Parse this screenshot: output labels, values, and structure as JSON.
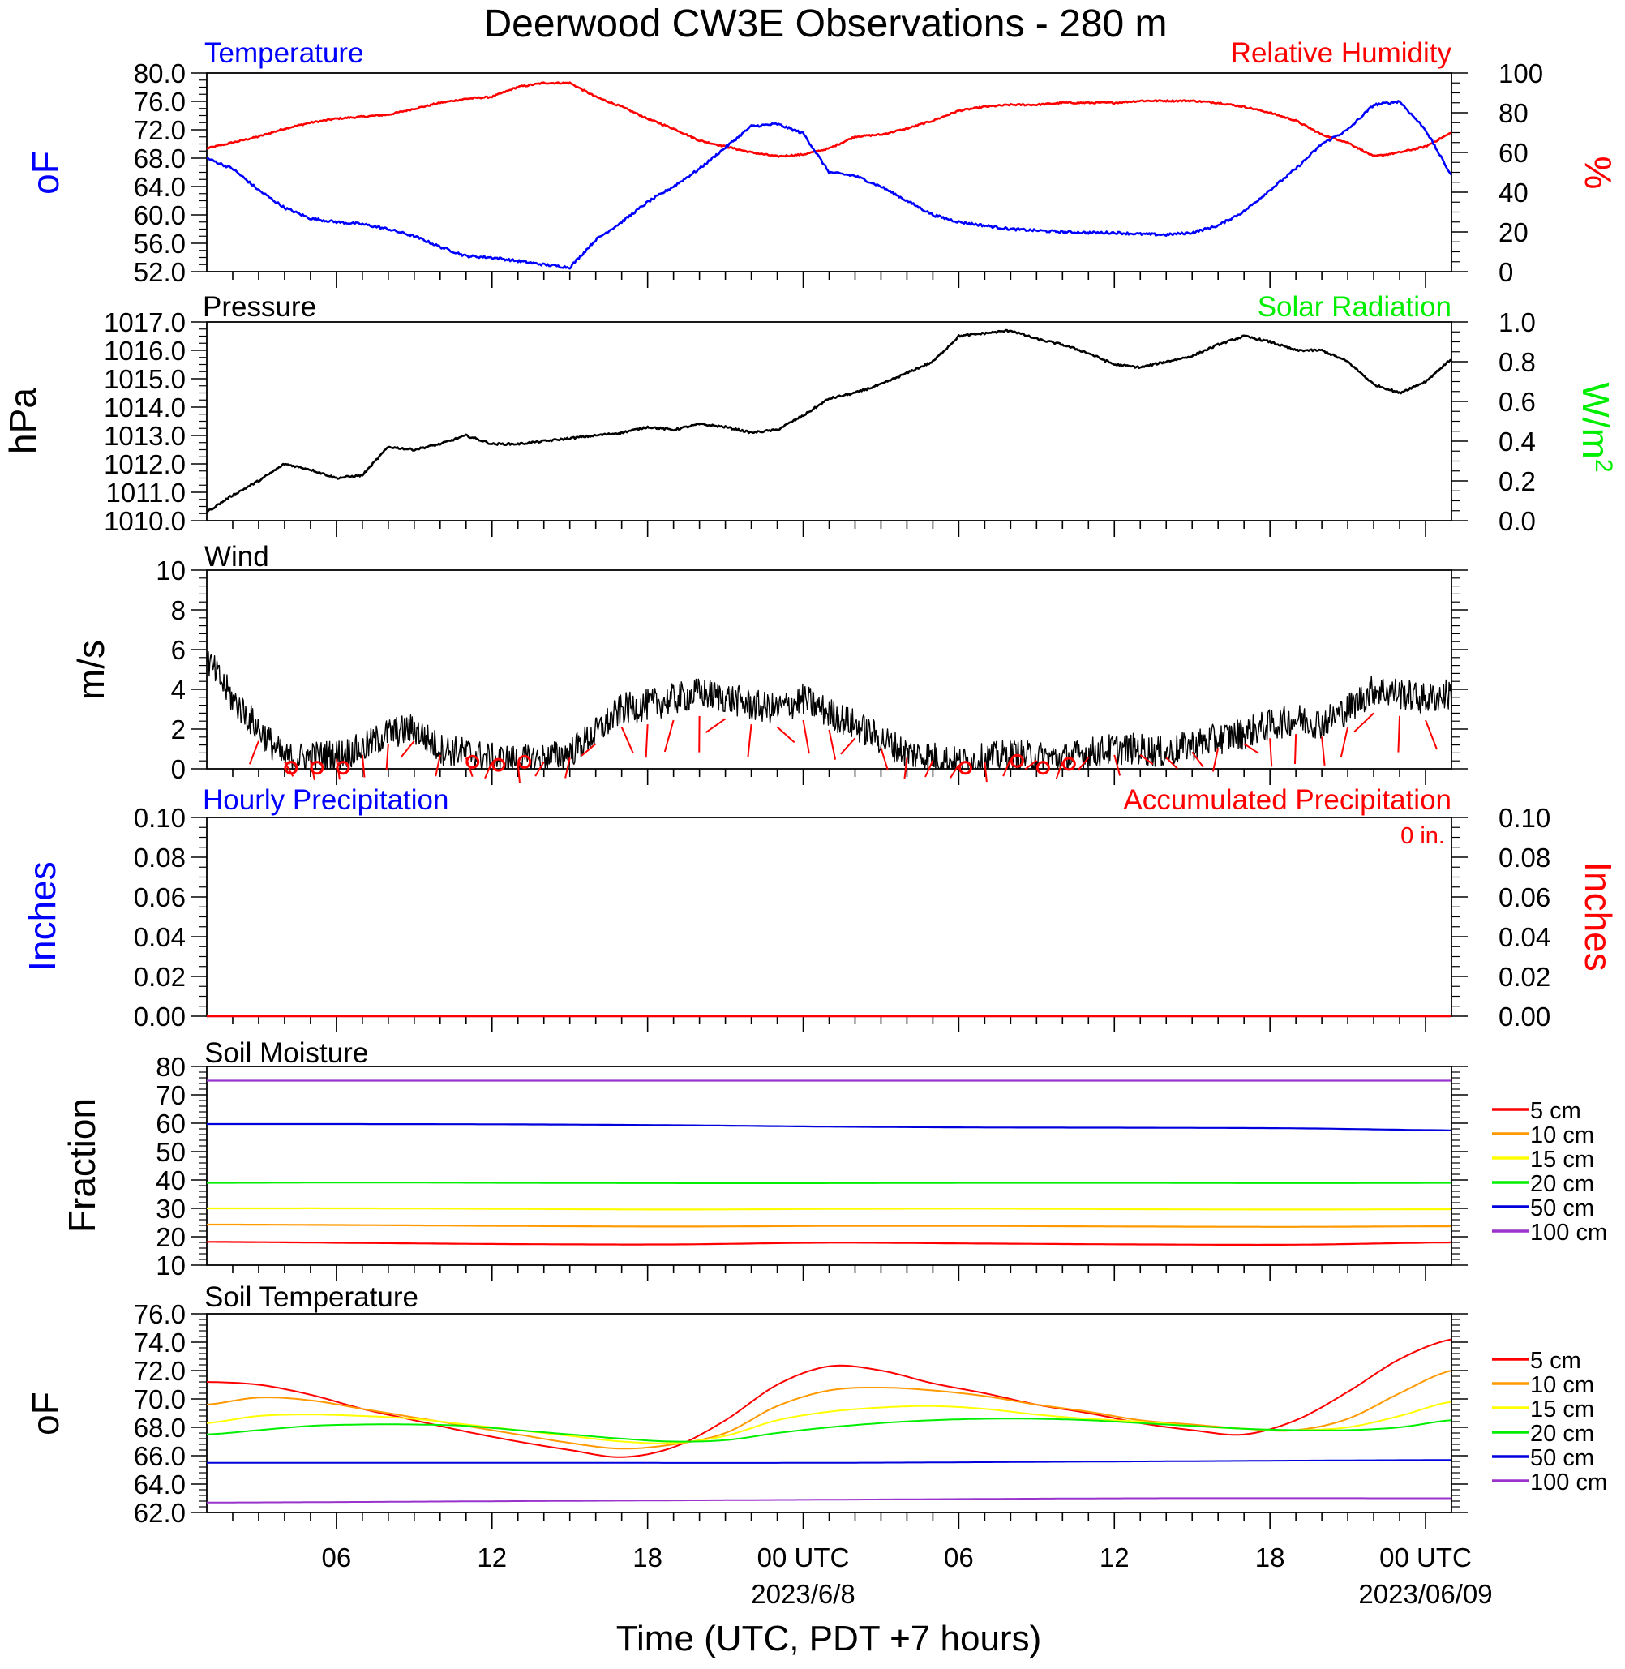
{
  "title": "Deerwood CW3E Observations - 280 m",
  "colors": {
    "temperature": "#0000ff",
    "humidity": "#ff0000",
    "pressure": "#000000",
    "solar": "#00ff00",
    "wind": "#000000",
    "barb": "#ff0000",
    "precip_hourly": "#0000ff",
    "precip_accum": "#ff0000",
    "soil_5cm": "#ff0000",
    "soil_10cm": "#ff9900",
    "soil_15cm": "#ffff00",
    "soil_20cm": "#00ee00",
    "soil_50cm": "#0000dd",
    "soil_100cm": "#9933cc"
  },
  "x_axis": {
    "label": "Time (UTC, PDT +7 hours)",
    "range_hours": [
      0,
      48
    ],
    "ticks": [
      {
        "hour": 5,
        "label": "06"
      },
      {
        "hour": 11,
        "label": "12"
      },
      {
        "hour": 17,
        "label": "18"
      },
      {
        "hour": 23,
        "label": "00 UTC"
      },
      {
        "hour": 29,
        "label": "06"
      },
      {
        "hour": 35,
        "label": "12"
      },
      {
        "hour": 41,
        "label": "18"
      },
      {
        "hour": 47,
        "label": "00 UTC"
      }
    ],
    "date_labels": [
      {
        "hour": 23,
        "label": "2023/6/8"
      },
      {
        "hour": 47,
        "label": "2023/06/09"
      }
    ]
  },
  "panels": {
    "temp_rh": {
      "left_title": "Temperature",
      "right_title": "Relative Humidity",
      "left_unit": "oF",
      "right_unit": "%",
      "left_ticks": [
        "52.0",
        "56.0",
        "60.0",
        "64.0",
        "68.0",
        "72.0",
        "76.0",
        "80.0"
      ],
      "right_ticks": [
        "0",
        "20",
        "40",
        "60",
        "80",
        "100"
      ]
    },
    "pressure": {
      "left_title": "Pressure",
      "right_title": "Solar Radiation",
      "left_unit": "hPa",
      "right_unit": "W/m2",
      "left_ticks": [
        "1010.0",
        "1011.0",
        "1012.0",
        "1013.0",
        "1014.0",
        "1015.0",
        "1016.0",
        "1017.0"
      ],
      "right_ticks": [
        "0.0",
        "0.2",
        "0.4",
        "0.6",
        "0.8",
        "1.0"
      ]
    },
    "wind": {
      "left_title": "Wind",
      "left_unit": "m/s",
      "left_ticks": [
        "0",
        "2",
        "4",
        "6",
        "8",
        "10"
      ]
    },
    "precip": {
      "left_title": "Hourly Precipitation",
      "right_title": "Accumulated Precipitation",
      "accum_total": "0 in.",
      "left_unit": "Inches",
      "right_unit": "Inches",
      "left_ticks": [
        "0.00",
        "0.02",
        "0.04",
        "0.06",
        "0.08",
        "0.10"
      ],
      "right_ticks": [
        "0.00",
        "0.02",
        "0.04",
        "0.06",
        "0.08",
        "0.10"
      ]
    },
    "soil_moisture": {
      "left_title": "Soil Moisture",
      "left_unit": "Fraction",
      "left_ticks": [
        "10",
        "20",
        "30",
        "40",
        "50",
        "60",
        "70",
        "80"
      ],
      "legend": [
        "5 cm",
        "10 cm",
        "15 cm",
        "20 cm",
        "50 cm",
        "100 cm"
      ]
    },
    "soil_temp": {
      "left_title": "Soil Temperature",
      "left_unit": "oF",
      "left_ticks": [
        "62.0",
        "64.0",
        "66.0",
        "68.0",
        "70.0",
        "72.0",
        "74.0",
        "76.0"
      ],
      "legend": [
        "5 cm",
        "10 cm",
        "15 cm",
        "20 cm",
        "50 cm",
        "100 cm"
      ]
    }
  },
  "chart_data": [
    {
      "type": "line",
      "title": "Temperature",
      "ylabel": "oF",
      "ylim": [
        52,
        80
      ],
      "series": [
        {
          "name": "Temperature",
          "color": "#0000ff",
          "x": [
            0,
            1,
            2,
            3,
            4,
            5,
            6,
            7,
            8,
            9,
            10,
            11,
            12,
            13,
            14,
            15,
            16,
            17,
            18,
            19,
            20,
            21,
            22,
            23,
            24,
            25,
            26,
            27,
            28,
            29,
            30,
            31,
            32,
            33,
            34,
            35,
            36,
            37,
            38,
            39,
            40,
            41,
            42,
            43,
            44,
            45,
            46,
            47,
            48
          ],
          "values": [
            68.0,
            66.5,
            63.5,
            61.0,
            59.5,
            59.0,
            58.7,
            58.0,
            57.0,
            55.5,
            54.2,
            54.0,
            53.5,
            53.0,
            52.6,
            56.5,
            59.0,
            61.8,
            64.0,
            66.5,
            69.5,
            72.5,
            72.8,
            71.5,
            66.0,
            65.5,
            64.0,
            62.0,
            60.0,
            59.0,
            58.5,
            58.0,
            57.8,
            57.6,
            57.5,
            57.5,
            57.3,
            57.2,
            57.5,
            58.5,
            60.5,
            63.5,
            66.5,
            70.0,
            72.0,
            75.5,
            76.0,
            72.0,
            65.5
          ]
        }
      ]
    },
    {
      "type": "line",
      "title": "Relative Humidity",
      "ylabel": "%",
      "ylim": [
        0,
        100
      ],
      "series": [
        {
          "name": "Relative Humidity",
          "color": "#ff0000",
          "x": [
            0,
            1,
            2,
            3,
            4,
            5,
            6,
            7,
            8,
            9,
            10,
            11,
            12,
            13,
            14,
            15,
            16,
            17,
            18,
            19,
            20,
            21,
            22,
            23,
            24,
            25,
            26,
            27,
            28,
            29,
            30,
            31,
            32,
            33,
            34,
            35,
            36,
            37,
            38,
            39,
            40,
            41,
            42,
            43,
            44,
            45,
            46,
            47,
            48
          ],
          "values": [
            62,
            65,
            68,
            72,
            75,
            77,
            78,
            79,
            82,
            85,
            87,
            88,
            93,
            95,
            95,
            88,
            83,
            77,
            72,
            66,
            63,
            60,
            58,
            59,
            62,
            68,
            69,
            72,
            76,
            81,
            83,
            84,
            84,
            85,
            85,
            85,
            86,
            86,
            86,
            85,
            83,
            80,
            76,
            69,
            65,
            58,
            60,
            63,
            70
          ]
        }
      ]
    },
    {
      "type": "line",
      "title": "Pressure",
      "ylabel": "hPa",
      "ylim": [
        1010,
        1017
      ],
      "series": [
        {
          "name": "Pressure",
          "color": "#000000",
          "x": [
            0,
            1,
            2,
            3,
            4,
            5,
            6,
            7,
            8,
            9,
            10,
            11,
            12,
            13,
            14,
            15,
            16,
            17,
            18,
            19,
            20,
            21,
            22,
            23,
            24,
            25,
            26,
            27,
            28,
            29,
            30,
            31,
            32,
            33,
            34,
            35,
            36,
            37,
            38,
            39,
            40,
            41,
            42,
            43,
            44,
            45,
            46,
            47,
            48
          ],
          "values": [
            1010.3,
            1010.9,
            1011.4,
            1012.0,
            1011.8,
            1011.5,
            1011.6,
            1012.6,
            1012.5,
            1012.7,
            1013.0,
            1012.7,
            1012.7,
            1012.8,
            1012.9,
            1013.0,
            1013.1,
            1013.3,
            1013.2,
            1013.4,
            1013.3,
            1013.1,
            1013.2,
            1013.7,
            1014.3,
            1014.5,
            1014.8,
            1015.2,
            1015.6,
            1016.5,
            1016.6,
            1016.7,
            1016.4,
            1016.2,
            1015.9,
            1015.5,
            1015.4,
            1015.6,
            1015.8,
            1016.2,
            1016.5,
            1016.3,
            1016.0,
            1016.0,
            1015.6,
            1014.8,
            1014.5,
            1014.9,
            1015.7
          ]
        }
      ]
    },
    {
      "type": "line",
      "title": "Wind",
      "ylabel": "m/s",
      "ylim": [
        0,
        10
      ],
      "series": [
        {
          "name": "Wind",
          "color": "#000000",
          "x": [
            0,
            1,
            2,
            3,
            4,
            5,
            6,
            7,
            8,
            9,
            10,
            11,
            12,
            13,
            14,
            15,
            16,
            17,
            18,
            19,
            20,
            21,
            22,
            23,
            24,
            25,
            26,
            27,
            28,
            29,
            30,
            31,
            32,
            33,
            34,
            35,
            36,
            37,
            38,
            39,
            40,
            41,
            42,
            43,
            44,
            45,
            46,
            47,
            48
          ],
          "values": [
            5.5,
            3.5,
            2.0,
            0.5,
            0.6,
            0.7,
            1.0,
            1.8,
            2.0,
            1.0,
            0.8,
            0.5,
            0.4,
            0.5,
            0.8,
            1.8,
            3.0,
            3.2,
            3.5,
            3.8,
            3.6,
            3.2,
            3.0,
            3.5,
            2.8,
            2.2,
            1.5,
            0.8,
            0.6,
            0.3,
            0.5,
            0.7,
            0.6,
            0.5,
            0.8,
            1.0,
            1.0,
            0.8,
            1.2,
            1.5,
            1.8,
            2.2,
            2.5,
            2.3,
            3.0,
            4.0,
            3.8,
            3.5,
            3.8
          ]
        }
      ]
    },
    {
      "type": "line",
      "title": "Hourly Precipitation",
      "ylabel": "Inches",
      "ylim": [
        0,
        0.1
      ],
      "series": [
        {
          "name": "Hourly Precipitation",
          "color": "#0000ff",
          "x": [
            0,
            48
          ],
          "values": [
            0,
            0
          ]
        },
        {
          "name": "Accumulated Precipitation",
          "color": "#ff0000",
          "x": [
            0,
            48
          ],
          "values": [
            0,
            0
          ]
        }
      ]
    },
    {
      "type": "line",
      "title": "Soil Moisture",
      "ylabel": "Fraction",
      "ylim": [
        10,
        80
      ],
      "series": [
        {
          "name": "5 cm",
          "color": "#ff0000",
          "x": [
            0,
            6,
            12,
            18,
            24,
            30,
            36,
            42,
            48
          ],
          "values": [
            18.2,
            17.8,
            17.4,
            17.3,
            17.9,
            17.6,
            17.3,
            17.2,
            18.0
          ]
        },
        {
          "name": "10 cm",
          "color": "#ff9900",
          "x": [
            0,
            6,
            12,
            18,
            24,
            30,
            36,
            42,
            48
          ],
          "values": [
            24.3,
            24.1,
            23.8,
            23.6,
            23.8,
            23.8,
            23.6,
            23.5,
            23.7
          ]
        },
        {
          "name": "15 cm",
          "color": "#ffff00",
          "x": [
            0,
            6,
            12,
            18,
            24,
            30,
            36,
            42,
            48
          ],
          "values": [
            30.0,
            30.0,
            29.8,
            29.6,
            29.8,
            29.9,
            29.7,
            29.6,
            29.7
          ]
        },
        {
          "name": "20 cm",
          "color": "#00ee00",
          "x": [
            0,
            6,
            12,
            18,
            24,
            30,
            36,
            42,
            48
          ],
          "values": [
            39.0,
            39.1,
            39.0,
            38.9,
            38.9,
            39.0,
            39.0,
            38.9,
            39.0
          ]
        },
        {
          "name": "50 cm",
          "color": "#0000dd",
          "x": [
            0,
            6,
            12,
            18,
            24,
            30,
            36,
            42,
            48
          ],
          "values": [
            59.7,
            59.7,
            59.6,
            59.3,
            58.8,
            58.5,
            58.4,
            58.2,
            57.5
          ]
        },
        {
          "name": "100 cm",
          "color": "#9933cc",
          "x": [
            0,
            6,
            12,
            18,
            24,
            30,
            36,
            42,
            48
          ],
          "values": [
            75.0,
            75.0,
            75.0,
            75.0,
            75.0,
            75.0,
            75.0,
            75.0,
            75.0
          ]
        }
      ]
    },
    {
      "type": "line",
      "title": "Soil Temperature",
      "ylabel": "oF",
      "ylim": [
        62,
        76
      ],
      "series": [
        {
          "name": "5 cm",
          "color": "#ff0000",
          "x": [
            0,
            2,
            4,
            6,
            8,
            10,
            12,
            14,
            16,
            18,
            20,
            22,
            24,
            26,
            28,
            30,
            32,
            34,
            36,
            38,
            40,
            42,
            44,
            46,
            48
          ],
          "values": [
            71.2,
            71.0,
            70.3,
            69.3,
            68.5,
            67.7,
            67.0,
            66.4,
            65.9,
            66.6,
            68.5,
            71.0,
            72.3,
            72.0,
            71.1,
            70.4,
            69.6,
            69.0,
            68.3,
            67.8,
            67.5,
            68.5,
            70.5,
            72.8,
            74.2
          ]
        },
        {
          "name": "10 cm",
          "color": "#ff9900",
          "x": [
            0,
            2,
            4,
            6,
            8,
            10,
            12,
            14,
            16,
            18,
            20,
            22,
            24,
            26,
            28,
            30,
            32,
            34,
            36,
            38,
            40,
            42,
            44,
            46,
            48
          ],
          "values": [
            69.6,
            70.1,
            69.9,
            69.3,
            68.7,
            68.1,
            67.5,
            66.9,
            66.5,
            66.8,
            67.6,
            69.5,
            70.6,
            70.8,
            70.6,
            70.2,
            69.6,
            69.1,
            68.5,
            68.2,
            67.9,
            67.8,
            68.6,
            70.4,
            72.0
          ]
        },
        {
          "name": "15 cm",
          "color": "#ffff00",
          "x": [
            0,
            2,
            4,
            6,
            8,
            10,
            12,
            14,
            16,
            18,
            20,
            22,
            24,
            26,
            28,
            30,
            32,
            34,
            36,
            38,
            40,
            42,
            44,
            46,
            48
          ],
          "values": [
            68.3,
            68.8,
            68.9,
            68.8,
            68.6,
            68.2,
            67.8,
            67.4,
            67.0,
            66.9,
            67.4,
            68.5,
            69.1,
            69.4,
            69.5,
            69.3,
            68.9,
            68.6,
            68.4,
            68.1,
            67.9,
            67.8,
            68.0,
            68.8,
            69.8
          ]
        },
        {
          "name": "20 cm",
          "color": "#00ee00",
          "x": [
            0,
            2,
            4,
            6,
            8,
            10,
            12,
            14,
            16,
            18,
            20,
            22,
            24,
            26,
            28,
            30,
            32,
            34,
            36,
            38,
            40,
            42,
            44,
            46,
            48
          ],
          "values": [
            67.5,
            67.8,
            68.1,
            68.2,
            68.2,
            68.1,
            67.8,
            67.5,
            67.2,
            67.0,
            67.1,
            67.6,
            68.0,
            68.3,
            68.5,
            68.6,
            68.6,
            68.5,
            68.3,
            68.1,
            67.9,
            67.8,
            67.8,
            68.0,
            68.5
          ]
        },
        {
          "name": "50 cm",
          "color": "#0000dd",
          "x": [
            0,
            12,
            24,
            36,
            48
          ],
          "values": [
            65.5,
            65.5,
            65.5,
            65.6,
            65.7
          ]
        },
        {
          "name": "100 cm",
          "color": "#9933cc",
          "x": [
            0,
            12,
            24,
            36,
            48
          ],
          "values": [
            62.7,
            62.8,
            62.9,
            63.0,
            63.0
          ]
        }
      ]
    },
    {
      "type": "scatter",
      "title": "Calm wind markers",
      "x": [
        3,
        4,
        5,
        10,
        11,
        12,
        29,
        31,
        32,
        33
      ],
      "values": [
        0.05,
        0.05,
        0.05,
        0.35,
        0.2,
        0.35,
        0.05,
        0.4,
        0.05,
        0.25
      ]
    }
  ]
}
